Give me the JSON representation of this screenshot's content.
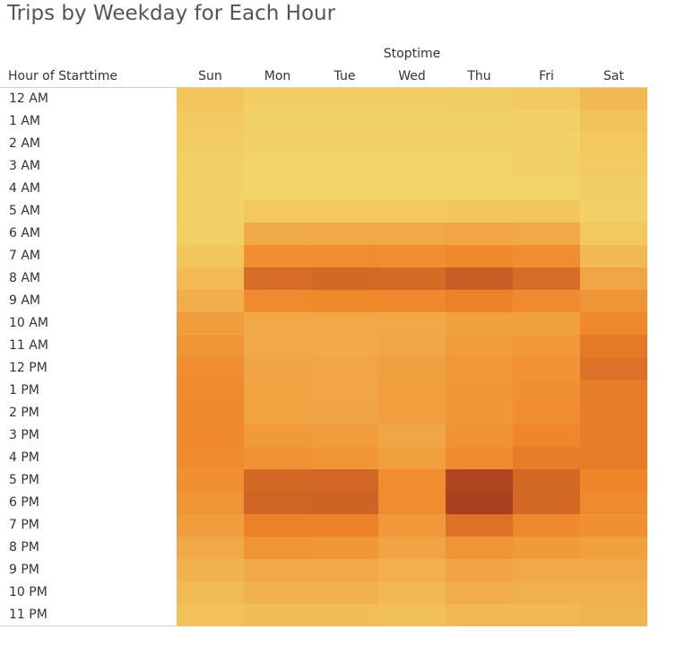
{
  "title": "Trips by Weekday for Each Hour",
  "column_group_label": "Stoptime",
  "row_header_label": "Hour of Starttime",
  "chart_data": {
    "type": "heatmap",
    "title": "Trips by Weekday for Each Hour",
    "xlabel": "Stoptime",
    "ylabel": "Hour of Starttime",
    "x": [
      "Sun",
      "Mon",
      "Tue",
      "Wed",
      "Thu",
      "Fri",
      "Sat"
    ],
    "y": [
      "12 AM",
      "1 AM",
      "2 AM",
      "3 AM",
      "4 AM",
      "5 AM",
      "6 AM",
      "7 AM",
      "8 AM",
      "9 AM",
      "10 AM",
      "11 AM",
      "12 PM",
      "1 PM",
      "2 PM",
      "3 PM",
      "4 PM",
      "5 PM",
      "6 PM",
      "7 PM",
      "8 PM",
      "9 PM",
      "10 PM",
      "11 PM"
    ],
    "color_scale": {
      "low": "#f2d56a",
      "mid": "#f0852a",
      "high": "#a0361f"
    },
    "value_scale": "relative intensity 0-100",
    "values": [
      [
        12,
        5,
        5,
        5,
        6,
        8,
        22
      ],
      [
        8,
        3,
        3,
        3,
        3,
        4,
        14
      ],
      [
        6,
        2,
        2,
        2,
        2,
        3,
        10
      ],
      [
        4,
        1,
        1,
        1,
        1,
        2,
        7
      ],
      [
        3,
        1,
        1,
        1,
        1,
        1,
        5
      ],
      [
        3,
        10,
        10,
        10,
        11,
        11,
        4
      ],
      [
        4,
        32,
        34,
        33,
        36,
        33,
        10
      ],
      [
        12,
        52,
        54,
        53,
        58,
        54,
        22
      ],
      [
        20,
        72,
        74,
        73,
        80,
        72,
        35
      ],
      [
        30,
        56,
        58,
        57,
        62,
        56,
        48
      ],
      [
        42,
        34,
        34,
        34,
        40,
        40,
        58
      ],
      [
        48,
        34,
        34,
        35,
        43,
        45,
        66
      ],
      [
        54,
        37,
        36,
        40,
        45,
        50,
        70
      ],
      [
        56,
        38,
        36,
        41,
        46,
        52,
        64
      ],
      [
        57,
        38,
        37,
        41,
        46,
        54,
        64
      ],
      [
        57,
        44,
        42,
        35,
        50,
        60,
        64
      ],
      [
        55,
        50,
        47,
        40,
        55,
        64,
        64
      ],
      [
        52,
        74,
        75,
        54,
        92,
        74,
        60
      ],
      [
        48,
        76,
        77,
        54,
        95,
        74,
        56
      ],
      [
        42,
        62,
        62,
        45,
        70,
        57,
        52
      ],
      [
        34,
        48,
        46,
        37,
        48,
        44,
        40
      ],
      [
        26,
        34,
        33,
        28,
        37,
        34,
        34
      ],
      [
        20,
        26,
        26,
        22,
        30,
        28,
        28
      ],
      [
        15,
        18,
        18,
        16,
        22,
        22,
        24
      ]
    ]
  }
}
